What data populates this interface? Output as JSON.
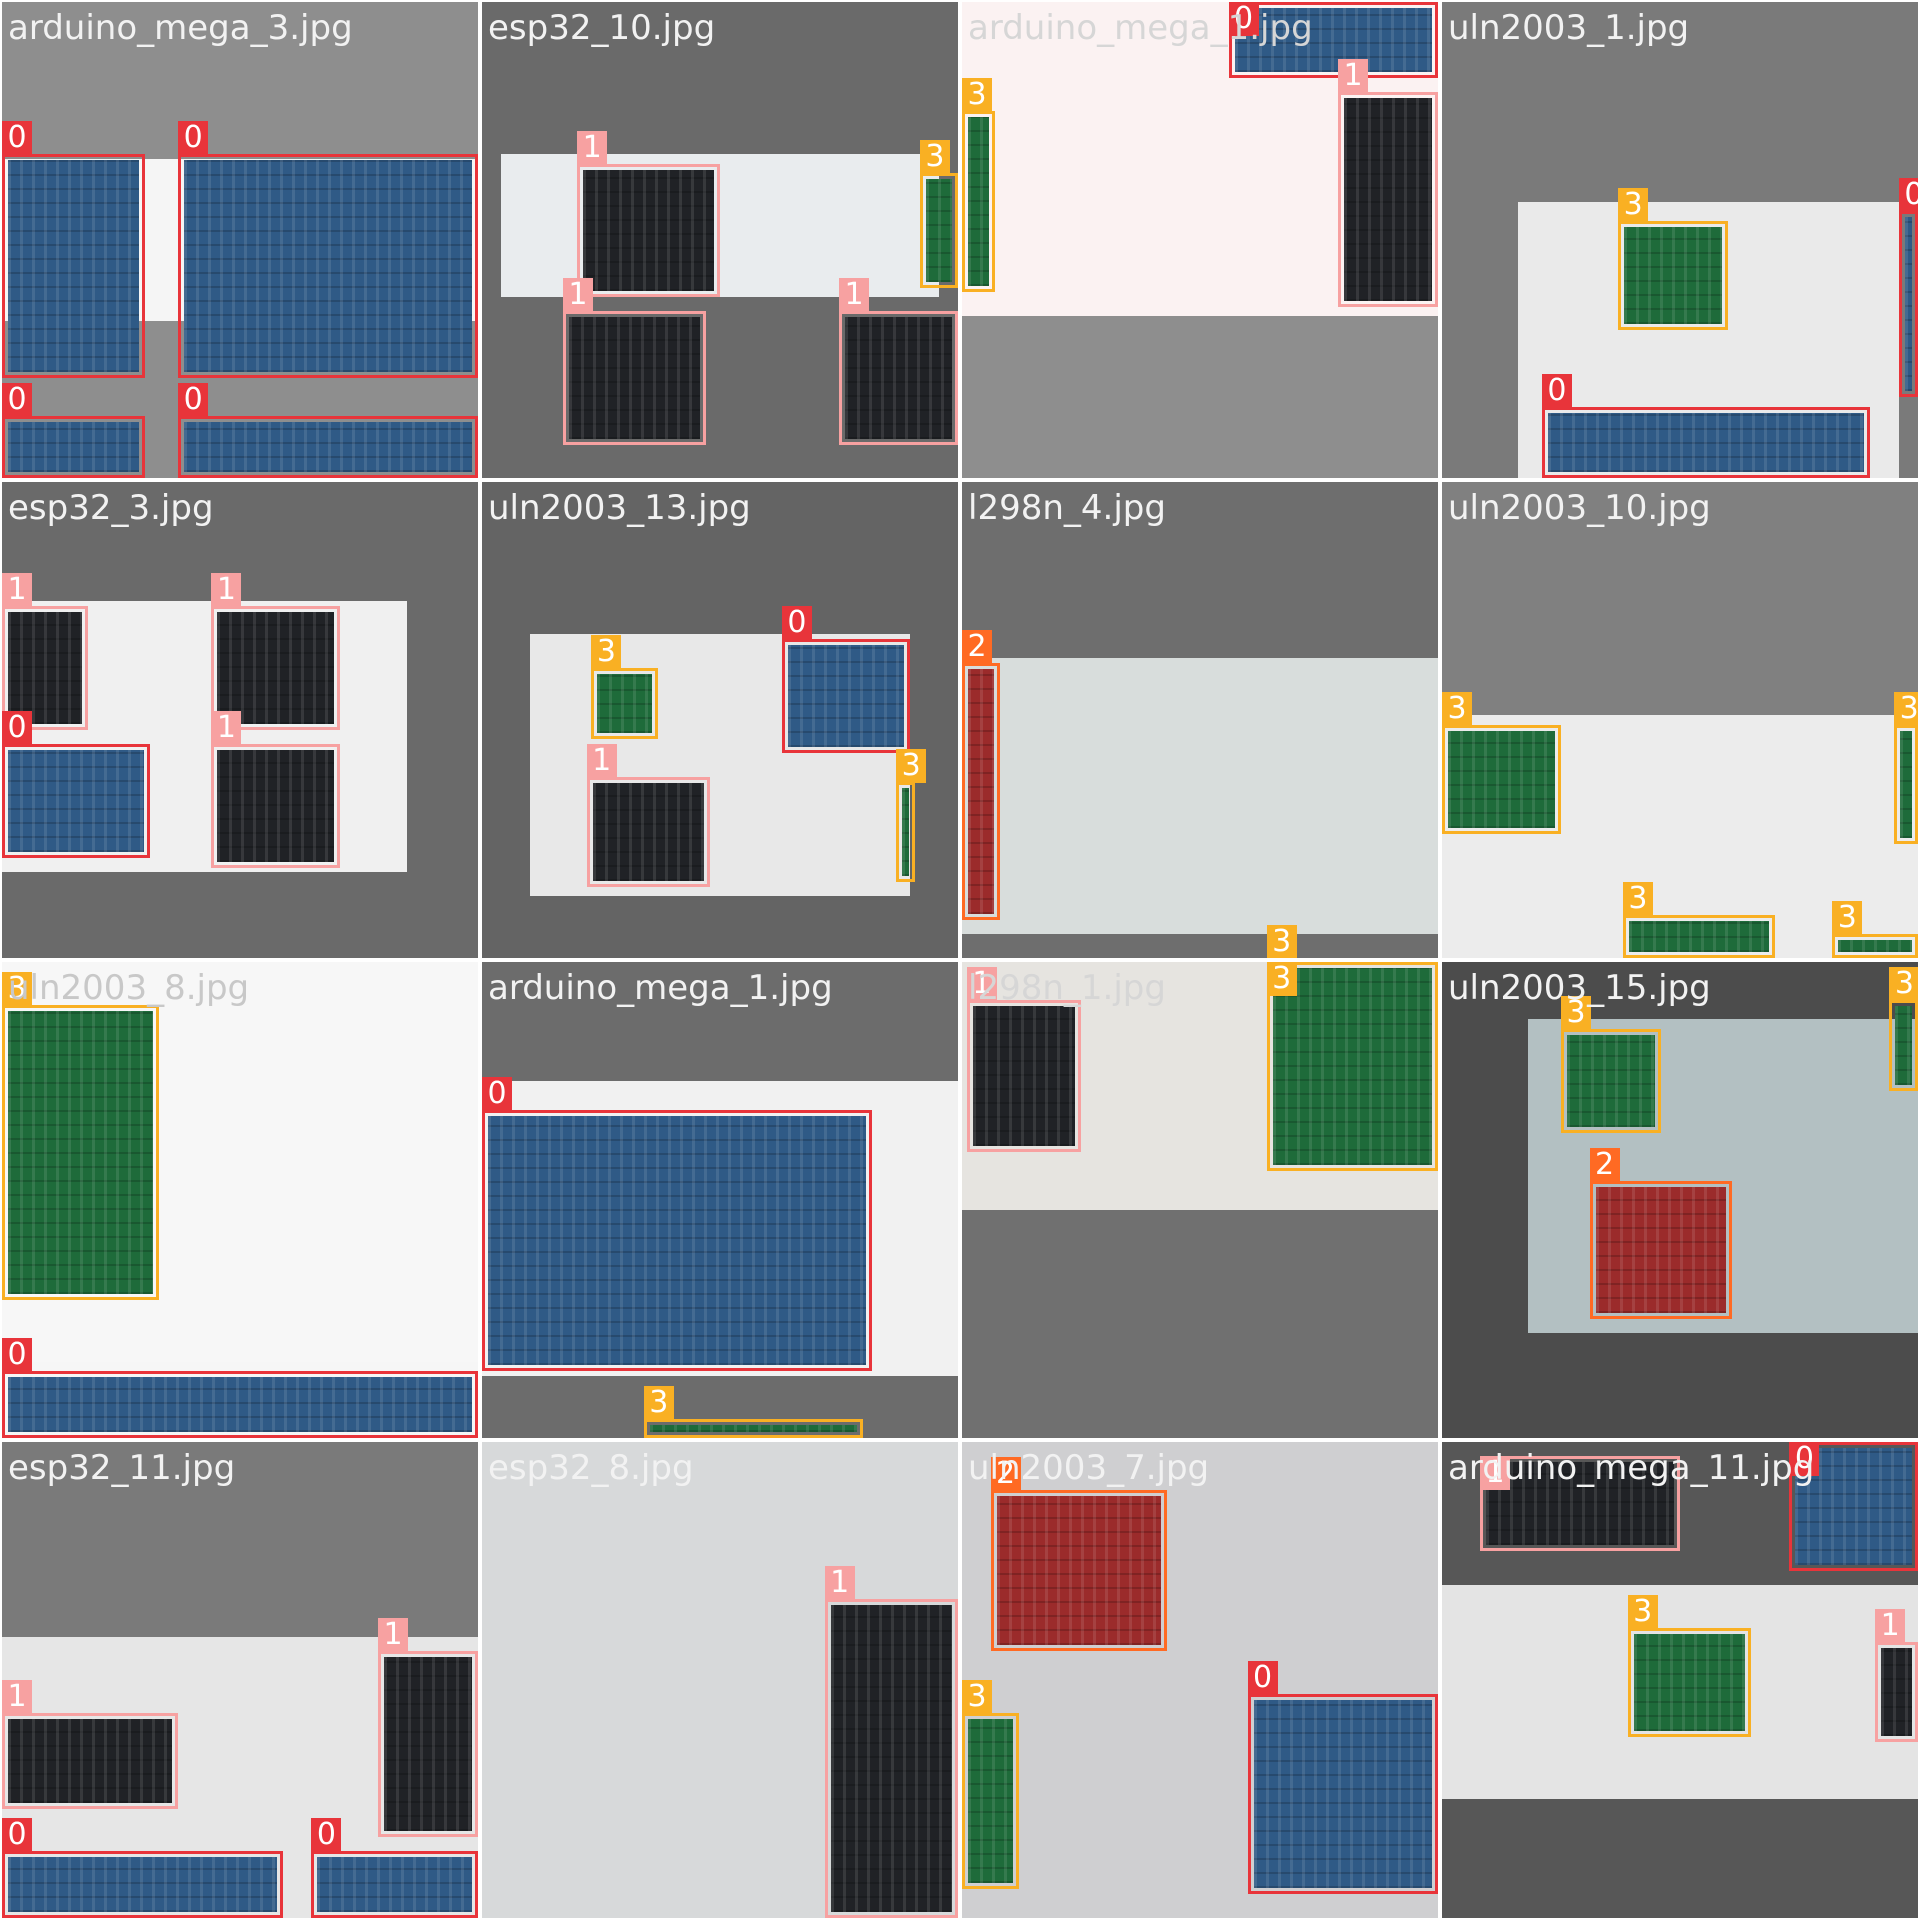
{
  "class_colors": {
    "0": "#e8343a",
    "1": "#f7a1a1",
    "2": "#ff6a23",
    "3": "#f9b023"
  },
  "board_colors": {
    "0": "#2f5a86",
    "1": "#202226",
    "2": "#9b2b2b",
    "3": "#1e6b3a"
  },
  "tiles": [
    {
      "title": "arduino_mega_3.jpg",
      "title_color": "#f2f2f2",
      "background": "#8e8e8e",
      "photos": [
        [
          0,
          0.33,
          1,
          0.67,
          "#f5f5f5"
        ]
      ],
      "boxes": [
        [
          0,
          0.0,
          0.32,
          0.3,
          0.79
        ],
        [
          0,
          0.37,
          0.32,
          1.0,
          0.79
        ],
        [
          0,
          0.0,
          0.87,
          0.3,
          1.0
        ],
        [
          0,
          0.37,
          0.87,
          1.0,
          1.0
        ]
      ]
    },
    {
      "title": "esp32_10.jpg",
      "title_color": "#f2f2f2",
      "background": "#6a6a6a",
      "photos": [
        [
          0.04,
          0.32,
          0.96,
          0.62,
          "#e9ecee"
        ]
      ],
      "boxes": [
        [
          1,
          0.2,
          0.34,
          0.5,
          0.62
        ],
        [
          1,
          0.17,
          0.65,
          0.47,
          0.93
        ],
        [
          1,
          0.75,
          0.65,
          1.0,
          0.93
        ],
        [
          3,
          0.92,
          0.36,
          1.0,
          0.6
        ]
      ]
    },
    {
      "title": "arduino_mega_1.jpg",
      "title_color": "#d6d6d6",
      "background": "#8e8e8e",
      "photos": [
        [
          0,
          0,
          1,
          0.66,
          "#fbf2f2"
        ]
      ],
      "boxes": [
        [
          0,
          0.56,
          0.0,
          1.0,
          0.16
        ],
        [
          1,
          0.79,
          0.19,
          1.0,
          0.64
        ],
        [
          3,
          0.0,
          0.23,
          0.07,
          0.61
        ]
      ]
    },
    {
      "title": "uln2003_1.jpg",
      "title_color": "#f2f2f2",
      "background": "#7a7a7a",
      "photos": [
        [
          0.16,
          0.42,
          0.96,
          1.0,
          "#eaeaea"
        ]
      ],
      "boxes": [
        [
          3,
          0.37,
          0.46,
          0.6,
          0.69
        ],
        [
          0,
          0.96,
          0.44,
          1.0,
          0.83
        ],
        [
          0,
          0.21,
          0.85,
          0.9,
          1.0
        ]
      ]
    },
    {
      "title": "esp32_3.jpg",
      "title_color": "#f2f2f2",
      "background": "#6a6a6a",
      "photos": [
        [
          0,
          0.25,
          0.85,
          0.82,
          "#f0f0f0"
        ]
      ],
      "boxes": [
        [
          1,
          0.0,
          0.26,
          0.18,
          0.52
        ],
        [
          1,
          0.44,
          0.26,
          0.71,
          0.52
        ],
        [
          0,
          0.0,
          0.55,
          0.31,
          0.79
        ],
        [
          1,
          0.44,
          0.55,
          0.71,
          0.81
        ]
      ]
    },
    {
      "title": "uln2003_13.jpg",
      "title_color": "#f2f2f2",
      "background": "#646464",
      "photos": [
        [
          0.1,
          0.32,
          0.9,
          0.87,
          "#e8e8e8"
        ]
      ],
      "boxes": [
        [
          3,
          0.23,
          0.39,
          0.37,
          0.54
        ],
        [
          0,
          0.63,
          0.33,
          0.9,
          0.57
        ],
        [
          1,
          0.22,
          0.62,
          0.48,
          0.85
        ],
        [
          3,
          0.87,
          0.63,
          0.91,
          0.84
        ]
      ]
    },
    {
      "title": "l298n_4.jpg",
      "title_color": "#f2f2f2",
      "background": "#6e6e6e",
      "photos": [
        [
          0,
          0.37,
          1,
          0.95,
          "#d8dddc"
        ]
      ],
      "boxes": [
        [
          2,
          0.0,
          0.38,
          0.08,
          0.92
        ],
        [
          3,
          0.64,
          1.0,
          1.0,
          1.0
        ]
      ]
    },
    {
      "title": "uln2003_10.jpg",
      "title_color": "#f2f2f2",
      "background": "#808080",
      "photos": [
        [
          0,
          0.49,
          1,
          1.0,
          "#ececec"
        ]
      ],
      "boxes": [
        [
          3,
          0.0,
          0.51,
          0.25,
          0.74
        ],
        [
          3,
          0.95,
          0.51,
          1.0,
          0.76
        ],
        [
          3,
          0.38,
          0.91,
          0.7,
          1.0
        ],
        [
          3,
          0.82,
          0.95,
          1.0,
          1.0
        ]
      ]
    },
    {
      "title": "uln2003_8.jpg",
      "title_color": "#c8c8c8",
      "background": "#f6f6f6",
      "photos": [
        [
          0,
          0,
          1,
          0.84,
          "#f7f7f7"
        ]
      ],
      "boxes": [
        [
          3,
          0.0,
          0.09,
          0.33,
          0.71
        ],
        [
          0,
          0.0,
          0.86,
          1.0,
          1.0
        ]
      ]
    },
    {
      "title": "arduino_mega_1.jpg",
      "title_color": "#f2f2f2",
      "background": "#6c6c6c",
      "photos": [
        [
          0,
          0.25,
          1,
          0.87,
          "#f1f1f1"
        ]
      ],
      "boxes": [
        [
          0,
          0.0,
          0.31,
          0.82,
          0.86
        ],
        [
          3,
          0.34,
          0.96,
          0.8,
          1.0
        ]
      ]
    },
    {
      "title": "l298n_1.jpg",
      "title_color": "#d6d6d6",
      "background": "#707070",
      "photos": [
        [
          0,
          0,
          1,
          0.52,
          "#e6e4e0"
        ]
      ],
      "boxes": [
        [
          1,
          0.01,
          0.08,
          0.25,
          0.4
        ],
        [
          3,
          0.64,
          0.0,
          1.0,
          0.44
        ]
      ]
    },
    {
      "title": "uln2003_15.jpg",
      "title_color": "#f2f2f2",
      "background": "#4c4c4c",
      "photos": [
        [
          0.18,
          0.12,
          1,
          0.78,
          "#b3c0c2"
        ]
      ],
      "boxes": [
        [
          3,
          0.25,
          0.14,
          0.46,
          0.36
        ],
        [
          2,
          0.31,
          0.46,
          0.61,
          0.75
        ],
        [
          3,
          0.94,
          0.08,
          1.0,
          0.27
        ]
      ]
    },
    {
      "title": "esp32_11.jpg",
      "title_color": "#f2f2f2",
      "background": "#7a7a7a",
      "photos": [
        [
          0,
          0.41,
          1,
          1.0,
          "#e6e6e6"
        ]
      ],
      "boxes": [
        [
          1,
          0.79,
          0.44,
          1.0,
          0.83
        ],
        [
          1,
          0.0,
          0.57,
          0.37,
          0.77
        ],
        [
          0,
          0.0,
          0.86,
          0.59,
          1.0
        ],
        [
          0,
          0.65,
          0.86,
          1.0,
          1.0
        ]
      ]
    },
    {
      "title": "esp32_8.jpg",
      "title_color": "#f2f2f2",
      "background": "#9a9a9a",
      "photos": [
        [
          0,
          0,
          1,
          1.0,
          "#d7d9da"
        ]
      ],
      "boxes": [
        [
          1,
          0.72,
          0.33,
          1.0,
          1.0
        ]
      ]
    },
    {
      "title": "uln2003_7.jpg",
      "title_color": "#f2f2f2",
      "background": "#8c8c8c",
      "photos": [
        [
          0,
          0,
          1,
          1.0,
          "#cfcfd1"
        ]
      ],
      "boxes": [
        [
          2,
          0.06,
          0.1,
          0.43,
          0.44
        ],
        [
          3,
          0.0,
          0.57,
          0.12,
          0.94
        ],
        [
          0,
          0.6,
          0.53,
          1.0,
          0.95
        ]
      ]
    },
    {
      "title": "arduino_mega_11.jpg",
      "title_color": "#f2f2f2",
      "background": "#575757",
      "photos": [
        [
          0,
          0.3,
          1,
          0.75,
          "#e4e4e4"
        ]
      ],
      "boxes": [
        [
          1,
          0.08,
          0.03,
          0.5,
          0.23
        ],
        [
          0,
          0.73,
          0.0,
          1.0,
          0.27
        ],
        [
          3,
          0.39,
          0.39,
          0.65,
          0.62
        ],
        [
          1,
          0.91,
          0.42,
          1.0,
          0.63
        ]
      ]
    }
  ]
}
